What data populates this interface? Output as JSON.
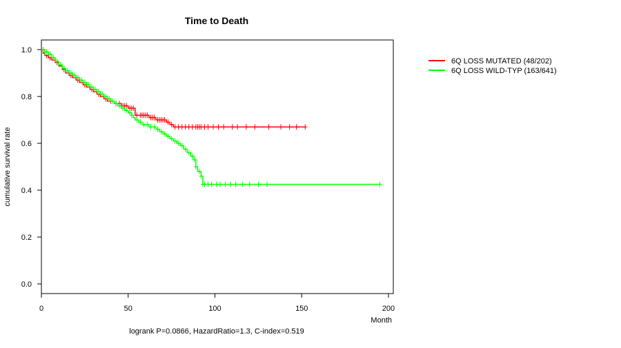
{
  "chart_data": {
    "type": "line",
    "title": "Time to Death",
    "xlabel": "Month",
    "ylabel": "cumulative survival rate",
    "xlim": [
      0,
      200
    ],
    "ylim": [
      0,
      1
    ],
    "x_ticks": [
      0,
      50,
      100,
      150,
      200
    ],
    "y_ticks": [
      0.0,
      0.2,
      0.4,
      0.6,
      0.8,
      1.0
    ],
    "y_tick_labels": [
      "0.0",
      "0.2",
      "0.4",
      "0.6",
      "0.8",
      "1.0"
    ],
    "footer": "logrank P=0.0866, HazardRatio=1.3, C-index=0.519",
    "legend_position": "top-right, outside plot",
    "series": [
      {
        "name": "6Q LOSS MUTATED (48/202)",
        "color": "#ff0000",
        "steps": [
          [
            0,
            1.0
          ],
          [
            1,
            0.985
          ],
          [
            2,
            0.975
          ],
          [
            4,
            0.965
          ],
          [
            6,
            0.955
          ],
          [
            8,
            0.945
          ],
          [
            10,
            0.93
          ],
          [
            12,
            0.915
          ],
          [
            14,
            0.9
          ],
          [
            16,
            0.89
          ],
          [
            18,
            0.88
          ],
          [
            20,
            0.87
          ],
          [
            22,
            0.86
          ],
          [
            24,
            0.85
          ],
          [
            26,
            0.84
          ],
          [
            28,
            0.83
          ],
          [
            30,
            0.82
          ],
          [
            32,
            0.81
          ],
          [
            34,
            0.8
          ],
          [
            36,
            0.79
          ],
          [
            38,
            0.78
          ],
          [
            42,
            0.77
          ],
          [
            46,
            0.76
          ],
          [
            50,
            0.75
          ],
          [
            54,
            0.72
          ],
          [
            62,
            0.71
          ],
          [
            66,
            0.7
          ],
          [
            72,
            0.69
          ],
          [
            74,
            0.68
          ],
          [
            76,
            0.67
          ],
          [
            152,
            0.67
          ]
        ],
        "censor": [
          3,
          5,
          9,
          13,
          17,
          21,
          25,
          29,
          33,
          37,
          40,
          43,
          45,
          47,
          48,
          49,
          51,
          52,
          53,
          55,
          57,
          58,
          59,
          60,
          61,
          63,
          64,
          65,
          67,
          68,
          69,
          70,
          71,
          73,
          75,
          77,
          79,
          81,
          83,
          85,
          87,
          89,
          90,
          91,
          92,
          94,
          96,
          99,
          102,
          105,
          110,
          113,
          118,
          123,
          131,
          138,
          143,
          147,
          152
        ]
      },
      {
        "name": "6Q LOSS WILD-TYP (163/641)",
        "color": "#00ff00",
        "steps": [
          [
            0,
            1.0
          ],
          [
            2,
            0.99
          ],
          [
            4,
            0.98
          ],
          [
            6,
            0.965
          ],
          [
            8,
            0.95
          ],
          [
            10,
            0.935
          ],
          [
            12,
            0.92
          ],
          [
            14,
            0.91
          ],
          [
            16,
            0.9
          ],
          [
            18,
            0.89
          ],
          [
            20,
            0.88
          ],
          [
            22,
            0.87
          ],
          [
            24,
            0.86
          ],
          [
            26,
            0.85
          ],
          [
            28,
            0.84
          ],
          [
            30,
            0.83
          ],
          [
            32,
            0.82
          ],
          [
            34,
            0.81
          ],
          [
            36,
            0.8
          ],
          [
            38,
            0.79
          ],
          [
            40,
            0.78
          ],
          [
            42,
            0.77
          ],
          [
            44,
            0.76
          ],
          [
            46,
            0.75
          ],
          [
            48,
            0.74
          ],
          [
            50,
            0.73
          ],
          [
            52,
            0.72
          ],
          [
            53,
            0.71
          ],
          [
            54,
            0.7
          ],
          [
            56,
            0.69
          ],
          [
            58,
            0.68
          ],
          [
            62,
            0.67
          ],
          [
            66,
            0.66
          ],
          [
            68,
            0.65
          ],
          [
            70,
            0.64
          ],
          [
            72,
            0.63
          ],
          [
            74,
            0.62
          ],
          [
            76,
            0.61
          ],
          [
            78,
            0.6
          ],
          [
            80,
            0.59
          ],
          [
            82,
            0.575
          ],
          [
            84,
            0.56
          ],
          [
            86,
            0.545
          ],
          [
            88,
            0.53
          ],
          [
            89,
            0.5
          ],
          [
            90,
            0.48
          ],
          [
            92,
            0.46
          ],
          [
            93,
            0.425
          ],
          [
            195,
            0.425
          ]
        ],
        "censor": [
          1,
          2,
          3,
          5,
          7,
          9,
          11,
          13,
          15,
          17,
          19,
          21,
          23,
          25,
          27,
          29,
          31,
          33,
          35,
          37,
          39,
          41,
          43,
          45,
          47,
          49,
          51,
          52,
          55,
          57,
          59,
          61,
          63,
          65,
          67,
          69,
          71,
          73,
          75,
          77,
          79,
          81,
          83,
          85,
          87,
          88,
          89,
          91,
          92,
          93,
          94,
          96,
          98,
          101,
          103,
          106,
          109,
          112,
          116,
          120,
          125,
          130,
          195
        ]
      }
    ]
  }
}
